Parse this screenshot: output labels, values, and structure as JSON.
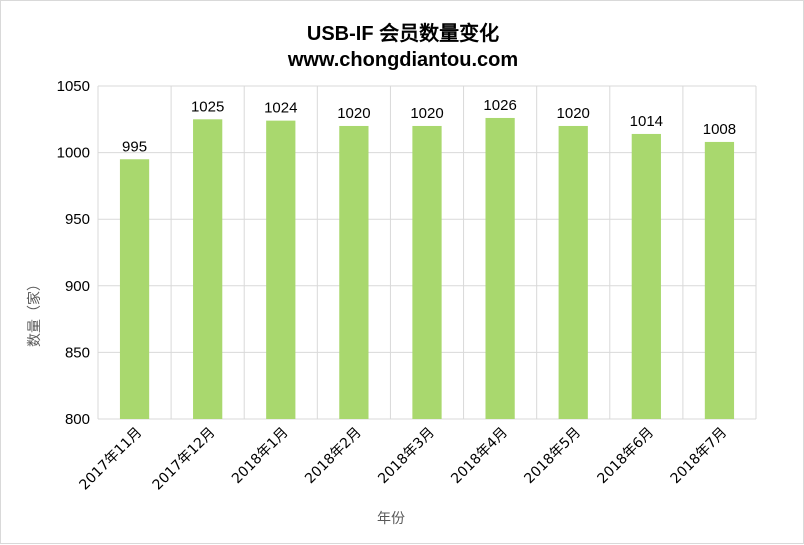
{
  "chart_data": {
    "type": "bar",
    "title": "USB-IF 会员数量变化",
    "subtitle": "www.chongdiantou.com",
    "xlabel": "年份",
    "ylabel": "数量（家）",
    "categories": [
      "2017年11月",
      "2017年12月",
      "2018年1月",
      "2018年2月",
      "2018年3月",
      "2018年4月",
      "2018年5月",
      "2018年6月",
      "2018年7月"
    ],
    "values": [
      995,
      1025,
      1024,
      1020,
      1020,
      1026,
      1020,
      1014,
      1008
    ],
    "ylim": [
      800,
      1050
    ],
    "yticks": [
      800,
      850,
      900,
      950,
      1000,
      1050
    ],
    "grid": true,
    "bar_color": "#a9d86e",
    "grid_color": "#d9d9d9"
  }
}
